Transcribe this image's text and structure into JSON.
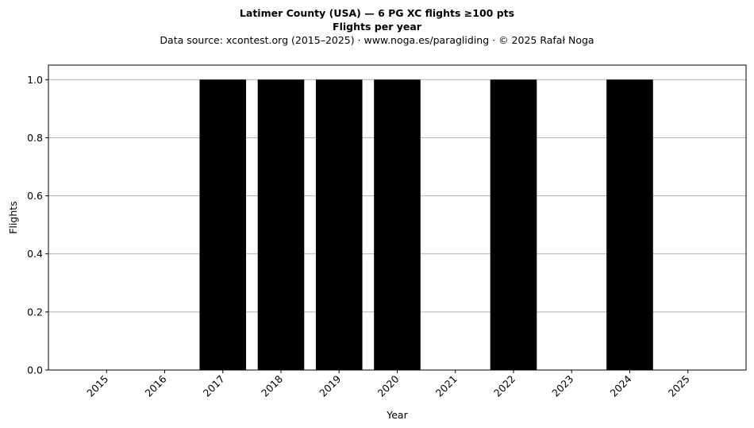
{
  "chart_data": {
    "type": "bar",
    "title": "Latimer County (USA)  —  6 PG XC flights ≥100 pts",
    "subtitle": "Flights per year",
    "source": "Data source: xcontest.org (2015–2025)  ·  www.noga.es/paragliding  ·  © 2025 Rafał Noga",
    "xlabel": "Year",
    "ylabel": "Flights",
    "categories": [
      "2015",
      "2016",
      "2017",
      "2018",
      "2019",
      "2020",
      "2021",
      "2022",
      "2023",
      "2024",
      "2025"
    ],
    "values": [
      0,
      0,
      1,
      1,
      1,
      1,
      0,
      1,
      0,
      1,
      0
    ],
    "ylim": [
      0,
      1.05
    ],
    "yticks": [
      "0.0",
      "0.2",
      "0.4",
      "0.6",
      "0.8",
      "1.0"
    ],
    "grid": "y",
    "bar_color": "#000000",
    "grid_color": "#b0b0b0"
  }
}
